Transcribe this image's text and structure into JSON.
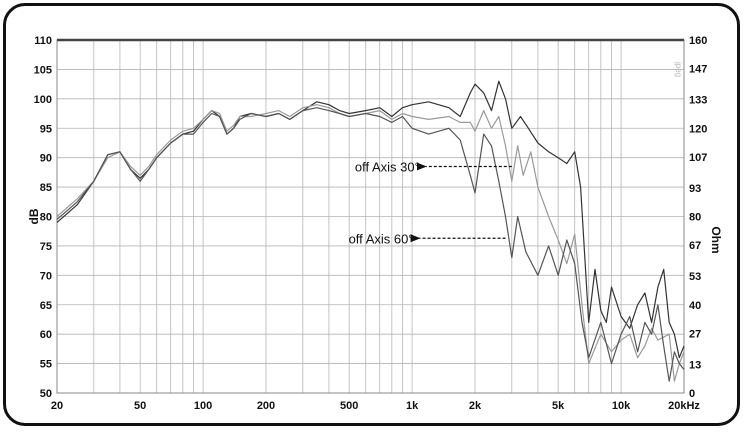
{
  "chart_data": {
    "type": "line",
    "xlabel": "",
    "x_scale": "log",
    "xlim": [
      20,
      20000
    ],
    "x_ticks": [
      20,
      50,
      100,
      200,
      500,
      1000,
      2000,
      5000,
      10000,
      20000
    ],
    "x_tick_labels": [
      "20",
      "50",
      "100",
      "200",
      "500",
      "1k",
      "2k",
      "5k",
      "10k",
      "20kHz"
    ],
    "ylabel": "dB",
    "ylim": [
      50,
      110
    ],
    "y_ticks": [
      50,
      55,
      60,
      65,
      70,
      75,
      80,
      85,
      90,
      95,
      100,
      105,
      110
    ],
    "y2label": "Ohm",
    "y2lim": [
      0,
      160
    ],
    "y2_ticks": [
      0,
      13,
      27,
      40,
      53,
      67,
      80,
      93,
      107,
      120,
      133,
      147,
      160
    ],
    "grid": true,
    "annotations": [
      {
        "text": "off Axis 30°",
        "x": 3000,
        "y": 88.5
      },
      {
        "text": "off Axis 60°",
        "x": 2800,
        "y": 76.3
      }
    ],
    "watermark": "jpeg",
    "series": [
      {
        "color": "#333333",
        "points": [
          [
            20,
            79
          ],
          [
            25,
            82
          ],
          [
            30,
            86
          ],
          [
            35,
            90.5
          ],
          [
            40,
            91
          ],
          [
            45,
            88
          ],
          [
            50,
            86.5
          ],
          [
            55,
            88
          ],
          [
            60,
            90
          ],
          [
            70,
            92.5
          ],
          [
            80,
            94
          ],
          [
            90,
            94.5
          ],
          [
            100,
            96.5
          ],
          [
            110,
            98
          ],
          [
            120,
            97
          ],
          [
            130,
            94
          ],
          [
            140,
            95
          ],
          [
            150,
            97
          ],
          [
            170,
            97.5
          ],
          [
            200,
            97
          ],
          [
            230,
            97.5
          ],
          [
            260,
            96.5
          ],
          [
            300,
            98
          ],
          [
            350,
            99.5
          ],
          [
            400,
            99
          ],
          [
            450,
            98
          ],
          [
            500,
            97.5
          ],
          [
            600,
            98
          ],
          [
            700,
            98.5
          ],
          [
            800,
            97
          ],
          [
            900,
            98.5
          ],
          [
            1000,
            99
          ],
          [
            1200,
            99.5
          ],
          [
            1500,
            98.5
          ],
          [
            1700,
            97
          ],
          [
            1900,
            101
          ],
          [
            2000,
            102.5
          ],
          [
            2200,
            101
          ],
          [
            2400,
            98
          ],
          [
            2600,
            103
          ],
          [
            2800,
            100
          ],
          [
            3000,
            95
          ],
          [
            3300,
            97
          ],
          [
            3600,
            95
          ],
          [
            4000,
            92.5
          ],
          [
            4500,
            91
          ],
          [
            5000,
            90
          ],
          [
            5500,
            89
          ],
          [
            6000,
            91
          ],
          [
            6400,
            85
          ],
          [
            7000,
            62
          ],
          [
            7500,
            71
          ],
          [
            8000,
            64
          ],
          [
            8500,
            62
          ],
          [
            9000,
            68
          ],
          [
            10000,
            63
          ],
          [
            11000,
            61
          ],
          [
            12000,
            65
          ],
          [
            13000,
            67
          ],
          [
            14000,
            62
          ],
          [
            15000,
            68
          ],
          [
            16000,
            71
          ],
          [
            17000,
            62
          ],
          [
            18000,
            60
          ],
          [
            19000,
            56
          ],
          [
            20000,
            58
          ]
        ]
      },
      {
        "color": "#9a9a9a",
        "points": [
          [
            20,
            80
          ],
          [
            25,
            83
          ],
          [
            30,
            86
          ],
          [
            35,
            90
          ],
          [
            40,
            91
          ],
          [
            45,
            88.5
          ],
          [
            50,
            87
          ],
          [
            55,
            88.5
          ],
          [
            60,
            90.5
          ],
          [
            70,
            93
          ],
          [
            80,
            94.5
          ],
          [
            90,
            95
          ],
          [
            100,
            96.5
          ],
          [
            110,
            98
          ],
          [
            120,
            97.5
          ],
          [
            130,
            94.5
          ],
          [
            140,
            95.5
          ],
          [
            150,
            97
          ],
          [
            170,
            97
          ],
          [
            200,
            97.5
          ],
          [
            230,
            98
          ],
          [
            260,
            97
          ],
          [
            300,
            98.5
          ],
          [
            350,
            99
          ],
          [
            400,
            98.5
          ],
          [
            450,
            97.5
          ],
          [
            500,
            97
          ],
          [
            600,
            97.5
          ],
          [
            700,
            98
          ],
          [
            800,
            96.5
          ],
          [
            900,
            97.5
          ],
          [
            1000,
            97
          ],
          [
            1200,
            96.5
          ],
          [
            1500,
            97
          ],
          [
            1700,
            96
          ],
          [
            1900,
            96
          ],
          [
            2000,
            94.5
          ],
          [
            2200,
            98
          ],
          [
            2400,
            95
          ],
          [
            2600,
            97
          ],
          [
            2800,
            92
          ],
          [
            3000,
            86
          ],
          [
            3200,
            92
          ],
          [
            3400,
            87
          ],
          [
            3700,
            91
          ],
          [
            4000,
            85
          ],
          [
            4500,
            80
          ],
          [
            5000,
            76
          ],
          [
            5500,
            72
          ],
          [
            6000,
            77
          ],
          [
            6500,
            65
          ],
          [
            7000,
            55
          ],
          [
            8000,
            60
          ],
          [
            9000,
            57
          ],
          [
            10000,
            59
          ],
          [
            11000,
            60
          ],
          [
            12000,
            56
          ],
          [
            13000,
            58
          ],
          [
            14000,
            61
          ],
          [
            15000,
            59
          ],
          [
            17000,
            60
          ],
          [
            18000,
            52
          ],
          [
            19000,
            55
          ],
          [
            20000,
            57
          ]
        ]
      },
      {
        "color": "#555555",
        "points": [
          [
            20,
            79.5
          ],
          [
            25,
            82.5
          ],
          [
            30,
            86
          ],
          [
            35,
            90.5
          ],
          [
            40,
            91
          ],
          [
            45,
            88
          ],
          [
            50,
            86
          ],
          [
            55,
            88
          ],
          [
            60,
            90
          ],
          [
            70,
            92.5
          ],
          [
            80,
            94
          ],
          [
            90,
            94
          ],
          [
            100,
            96
          ],
          [
            110,
            97.5
          ],
          [
            120,
            97
          ],
          [
            130,
            94
          ],
          [
            140,
            95
          ],
          [
            150,
            96.5
          ],
          [
            170,
            97.5
          ],
          [
            200,
            97
          ],
          [
            230,
            97.5
          ],
          [
            260,
            96.5
          ],
          [
            300,
            98
          ],
          [
            350,
            98.5
          ],
          [
            400,
            98
          ],
          [
            450,
            97.5
          ],
          [
            500,
            97
          ],
          [
            600,
            97.5
          ],
          [
            700,
            97
          ],
          [
            800,
            96
          ],
          [
            900,
            97
          ],
          [
            1000,
            95
          ],
          [
            1200,
            94
          ],
          [
            1500,
            95
          ],
          [
            1700,
            93
          ],
          [
            1900,
            87
          ],
          [
            2000,
            84
          ],
          [
            2200,
            94
          ],
          [
            2400,
            92
          ],
          [
            2600,
            86
          ],
          [
            2800,
            80
          ],
          [
            3000,
            73
          ],
          [
            3200,
            80
          ],
          [
            3500,
            74
          ],
          [
            4000,
            70
          ],
          [
            4500,
            75
          ],
          [
            5000,
            70
          ],
          [
            5500,
            76
          ],
          [
            6000,
            72
          ],
          [
            6500,
            62
          ],
          [
            7000,
            56
          ],
          [
            8000,
            62
          ],
          [
            9000,
            55
          ],
          [
            10000,
            60
          ],
          [
            11000,
            63
          ],
          [
            12000,
            57
          ],
          [
            13000,
            62
          ],
          [
            14000,
            60
          ],
          [
            15000,
            65
          ],
          [
            16000,
            58
          ],
          [
            17000,
            52
          ],
          [
            18000,
            57
          ],
          [
            19000,
            55
          ],
          [
            20000,
            54
          ]
        ]
      }
    ]
  }
}
